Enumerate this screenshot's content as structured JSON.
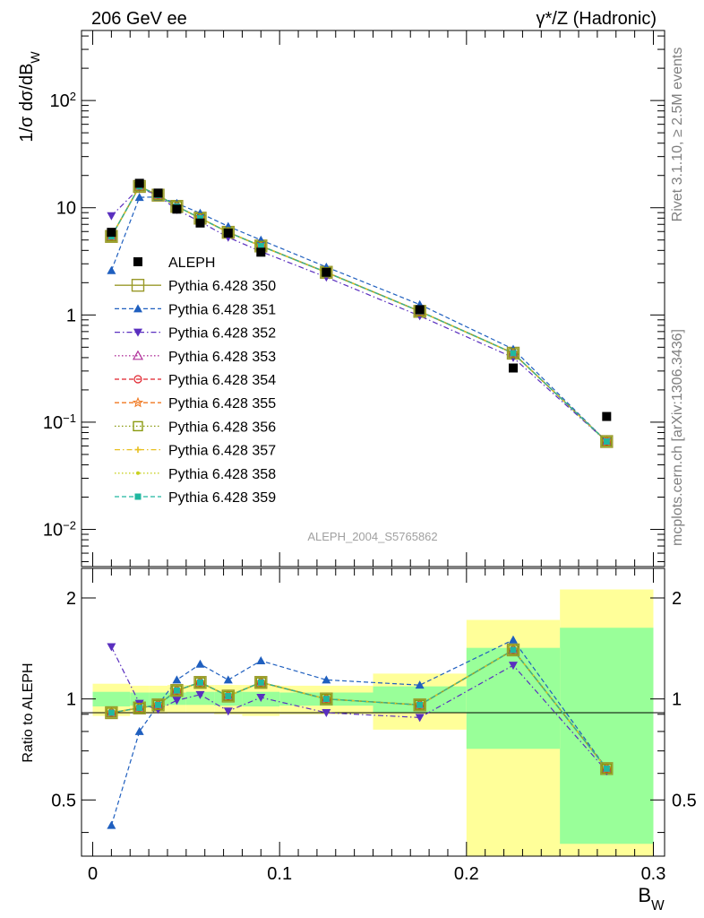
{
  "header": {
    "left": "206 GeV ee",
    "right": "γ*/Z (Hadronic)"
  },
  "side_notes": {
    "rivet": "Rivet 3.1.10, ≥ 2.5M events",
    "mcplots": "mcplots.cern.ch [arXiv:1306.3436]"
  },
  "analysis_label": "ALEPH_2004_S5765862",
  "chart_data": [
    {
      "type": "line",
      "panel": "main",
      "ylabel": "1/σ  dσ/dB_W",
      "yscale": "log",
      "ylim": [
        0.0045,
        450
      ],
      "xlim": [
        -0.006,
        0.306
      ],
      "y_ticks": [
        {
          "value": 0.01,
          "base": "10",
          "exp": "−2"
        },
        {
          "value": 0.1,
          "base": "10",
          "exp": "−1"
        },
        {
          "value": 1,
          "base": "1",
          "exp": ""
        },
        {
          "value": 10,
          "base": "10",
          "exp": ""
        },
        {
          "value": 100,
          "base": "10",
          "exp": "2"
        }
      ],
      "x": [
        0.01,
        0.025,
        0.035,
        0.045,
        0.0575,
        0.0725,
        0.09,
        0.125,
        0.175,
        0.225,
        0.275
      ],
      "legend_position": "left-middle",
      "data": {
        "name": "ALEPH",
        "values": [
          5.9,
          16.9,
          13.7,
          9.7,
          7.2,
          5.8,
          3.85,
          2.5,
          1.12,
          0.32,
          0.113
        ]
      },
      "series": [
        {
          "name": "Pythia 6.428 350",
          "color": "#9a9a2a",
          "style": "solid",
          "marker": "square-open",
          "values": [
            5.4,
            15.8,
            13.1,
            10.3,
            8.0,
            5.9,
            4.4,
            2.5,
            1.08,
            0.44,
            0.066
          ]
        },
        {
          "name": "Pythia 6.428 351",
          "color": "#1f5fbf",
          "style": "dashed",
          "marker": "triangle-up",
          "values": [
            2.6,
            12.5,
            12.6,
            11.0,
            8.9,
            6.7,
            5.0,
            2.8,
            1.25,
            0.48,
            0.066
          ]
        },
        {
          "name": "Pythia 6.428 352",
          "color": "#5a2fbf",
          "style": "dashdot",
          "marker": "triangle-down",
          "values": [
            8.4,
            15.3,
            13.0,
            9.6,
            7.4,
            5.3,
            3.9,
            2.25,
            0.98,
            0.4,
            0.066
          ]
        },
        {
          "name": "Pythia 6.428 353",
          "color": "#b0309a",
          "style": "dotted",
          "marker": "triangle-open",
          "values": [
            5.4,
            15.8,
            13.1,
            10.3,
            8.0,
            5.9,
            4.4,
            2.5,
            1.08,
            0.44,
            0.066
          ]
        },
        {
          "name": "Pythia 6.428 354",
          "color": "#e0202a",
          "style": "dashed",
          "marker": "circle-open",
          "values": [
            5.4,
            15.8,
            13.1,
            10.3,
            8.0,
            5.9,
            4.4,
            2.5,
            1.08,
            0.44,
            0.066
          ]
        },
        {
          "name": "Pythia 6.428 355",
          "color": "#f07820",
          "style": "dashed",
          "marker": "star-open",
          "values": [
            5.4,
            15.8,
            13.1,
            10.3,
            8.0,
            5.9,
            4.4,
            2.5,
            1.08,
            0.44,
            0.066
          ]
        },
        {
          "name": "Pythia 6.428 356",
          "color": "#8a9a10",
          "style": "dotted",
          "marker": "square-open",
          "values": [
            5.4,
            15.8,
            13.1,
            10.3,
            8.0,
            5.9,
            4.4,
            2.5,
            1.08,
            0.44,
            0.066
          ]
        },
        {
          "name": "Pythia 6.428 357",
          "color": "#e8c020",
          "style": "dashdot",
          "marker": "cross",
          "values": [
            5.4,
            15.8,
            13.1,
            10.3,
            8.0,
            5.9,
            4.4,
            2.5,
            1.08,
            0.44,
            0.066
          ]
        },
        {
          "name": "Pythia 6.428 358",
          "color": "#c8d020",
          "style": "dotted",
          "marker": "dot",
          "values": [
            5.4,
            15.8,
            13.1,
            10.3,
            8.0,
            5.9,
            4.4,
            2.5,
            1.08,
            0.44,
            0.066
          ]
        },
        {
          "name": "Pythia 6.428 359",
          "color": "#20b8a0",
          "style": "dashed",
          "marker": "square-filled",
          "values": [
            5.4,
            15.8,
            13.1,
            10.3,
            8.0,
            5.9,
            4.4,
            2.5,
            1.08,
            0.44,
            0.066
          ]
        }
      ]
    },
    {
      "type": "line",
      "panel": "ratio",
      "ylabel": "Ratio to ALEPH",
      "xlabel": "B_W",
      "yscale": "log",
      "ylim": [
        0.34,
        2.45
      ],
      "xlim": [
        -0.006,
        0.306
      ],
      "y_ticks": [
        0.5,
        1,
        2
      ],
      "x_ticks": [
        0,
        0.1,
        0.2,
        0.3
      ],
      "x": [
        0.01,
        0.025,
        0.035,
        0.045,
        0.0575,
        0.0725,
        0.09,
        0.125,
        0.175,
        0.225,
        0.275
      ],
      "bands": {
        "bin_edges": [
          0.0,
          0.02,
          0.03,
          0.04,
          0.05,
          0.065,
          0.08,
          0.1,
          0.15,
          0.2,
          0.25,
          0.3
        ],
        "stat_low": [
          0.95,
          0.955,
          0.955,
          0.96,
          0.96,
          0.955,
          0.95,
          0.955,
          0.91,
          0.71,
          0.37
        ],
        "stat_high": [
          1.05,
          1.045,
          1.045,
          1.045,
          1.05,
          1.05,
          1.05,
          1.045,
          1.09,
          1.42,
          1.63
        ],
        "total_low": [
          0.89,
          0.905,
          0.905,
          0.91,
          0.91,
          0.9,
          0.89,
          0.9,
          0.81,
          0.34,
          0.34
        ],
        "total_high": [
          1.11,
          1.095,
          1.095,
          1.1,
          1.1,
          1.1,
          1.1,
          1.095,
          1.19,
          1.72,
          2.12
        ]
      },
      "series": [
        {
          "name": "Pythia 6.428 350",
          "values": [
            0.91,
            0.94,
            0.96,
            1.06,
            1.12,
            1.02,
            1.12,
            1.0,
            0.96,
            1.4,
            0.62
          ]
        },
        {
          "name": "Pythia 6.428 351",
          "values": [
            0.42,
            0.8,
            0.96,
            1.14,
            1.27,
            1.14,
            1.3,
            1.14,
            1.1,
            1.5,
            0.62
          ]
        },
        {
          "name": "Pythia 6.428 352",
          "values": [
            1.43,
            0.97,
            0.93,
            0.99,
            1.03,
            0.92,
            1.01,
            0.91,
            0.88,
            1.26,
            0.61
          ]
        },
        {
          "name": "Pythia 6.428 353",
          "values": [
            0.91,
            0.94,
            0.96,
            1.06,
            1.12,
            1.02,
            1.12,
            1.0,
            0.96,
            1.4,
            0.62
          ]
        },
        {
          "name": "Pythia 6.428 354",
          "values": [
            0.91,
            0.94,
            0.96,
            1.06,
            1.12,
            1.02,
            1.12,
            1.0,
            0.96,
            1.4,
            0.62
          ]
        },
        {
          "name": "Pythia 6.428 355",
          "values": [
            0.91,
            0.94,
            0.96,
            1.06,
            1.12,
            1.02,
            1.12,
            1.0,
            0.96,
            1.4,
            0.62
          ]
        },
        {
          "name": "Pythia 6.428 356",
          "values": [
            0.91,
            0.94,
            0.96,
            1.06,
            1.12,
            1.02,
            1.12,
            1.0,
            0.96,
            1.4,
            0.62
          ]
        },
        {
          "name": "Pythia 6.428 357",
          "values": [
            0.91,
            0.94,
            0.96,
            1.06,
            1.12,
            1.02,
            1.12,
            1.0,
            0.96,
            1.4,
            0.62
          ]
        },
        {
          "name": "Pythia 6.428 358",
          "values": [
            0.91,
            0.94,
            0.96,
            1.06,
            1.12,
            1.02,
            1.12,
            1.0,
            0.96,
            1.4,
            0.62
          ]
        },
        {
          "name": "Pythia 6.428 359",
          "values": [
            0.91,
            0.94,
            0.96,
            1.06,
            1.12,
            1.02,
            1.12,
            1.0,
            0.96,
            1.4,
            0.62
          ]
        }
      ]
    }
  ]
}
